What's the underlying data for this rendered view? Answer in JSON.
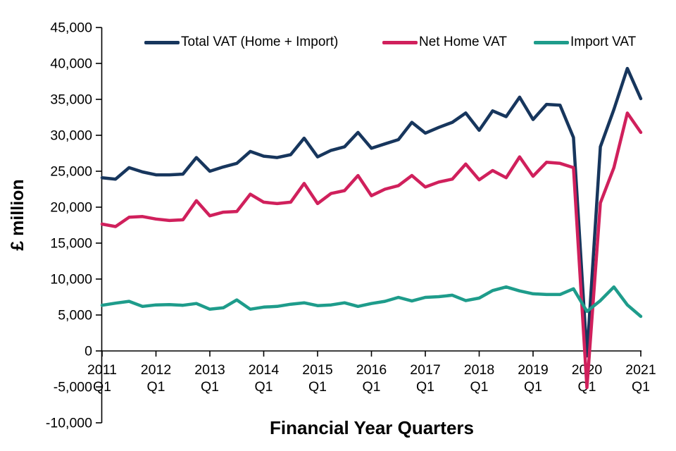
{
  "chart_data": {
    "type": "line",
    "title": "",
    "xlabel": "Financial Year Quarters",
    "ylabel": "£ million",
    "ylim": [
      -10000,
      45000
    ],
    "ytick_step": 5000,
    "grid": false,
    "legend_position": "top",
    "axis_color": "#000000",
    "yticks": [
      {
        "value": 45000,
        "label": "45,000"
      },
      {
        "value": 40000,
        "label": "40,000"
      },
      {
        "value": 35000,
        "label": "35,000"
      },
      {
        "value": 30000,
        "label": "30,000"
      },
      {
        "value": 25000,
        "label": "25,000"
      },
      {
        "value": 20000,
        "label": "20,000"
      },
      {
        "value": 15000,
        "label": "15,000"
      },
      {
        "value": 10000,
        "label": "10,000"
      },
      {
        "value": 5000,
        "label": "5,000"
      },
      {
        "value": 0,
        "label": "0"
      },
      {
        "value": -5000,
        "label": "-5,000"
      },
      {
        "value": -10000,
        "label": "-10,000"
      }
    ],
    "xticks": [
      "2011",
      "2012",
      "2013",
      "2014",
      "2015",
      "2016",
      "2017",
      "2018",
      "2019",
      "2020",
      "2021"
    ],
    "quarter_label": "Q1",
    "x_unit": "quarter",
    "points_per_year": 4,
    "series": [
      {
        "name": "Total VAT (Home + Import)",
        "color": "#17365d",
        "values": [
          24100,
          23900,
          25500,
          24900,
          24500,
          24500,
          24600,
          26900,
          25000,
          25600,
          26100,
          27750,
          27100,
          26900,
          27300,
          29600,
          27000,
          27900,
          28400,
          30400,
          28200,
          28800,
          29400,
          31800,
          30300,
          31100,
          31800,
          33100,
          30700,
          33400,
          32600,
          35300,
          32200,
          34300,
          34200,
          29700,
          -700,
          28400,
          33600,
          39300,
          35100
        ]
      },
      {
        "name": "Net Home VAT",
        "color": "#d0205c",
        "values": [
          17650,
          17300,
          18600,
          18700,
          18350,
          18150,
          18250,
          20900,
          18800,
          19300,
          19400,
          21800,
          20700,
          20500,
          20700,
          23300,
          20500,
          21900,
          22300,
          24400,
          21600,
          22500,
          23000,
          24400,
          22800,
          23500,
          23900,
          26000,
          23800,
          25100,
          24100,
          27000,
          24300,
          26250,
          26100,
          25500,
          -5100,
          20600,
          25500,
          33100,
          30400
        ]
      },
      {
        "name": "Import VAT",
        "color": "#1e9c8b",
        "values": [
          6350,
          6650,
          6900,
          6200,
          6400,
          6450,
          6350,
          6600,
          5800,
          6000,
          7100,
          5800,
          6100,
          6200,
          6500,
          6700,
          6300,
          6400,
          6700,
          6200,
          6600,
          6900,
          7450,
          6950,
          7450,
          7550,
          7750,
          7000,
          7350,
          8400,
          8900,
          8350,
          7950,
          7850,
          7850,
          8650,
          5500,
          7000,
          8900,
          6400,
          4800
        ]
      }
    ]
  }
}
